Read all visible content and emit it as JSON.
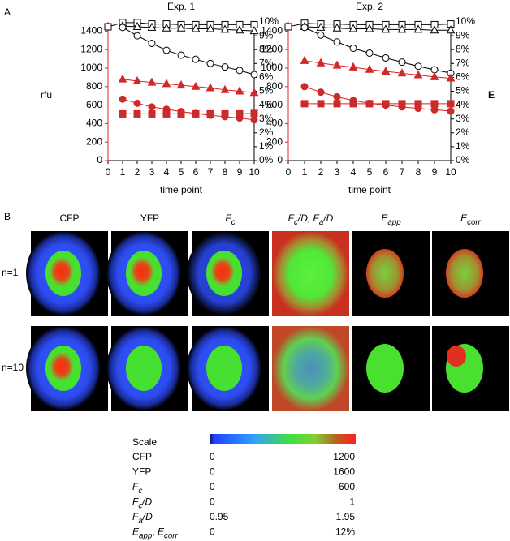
{
  "panel_labels": [
    "A",
    "B"
  ],
  "chart_data": [
    {
      "type": "line",
      "title": "Exp. 1",
      "xlabel": "time point",
      "ylabel": "rfu",
      "x": [
        0,
        1,
        2,
        3,
        4,
        5,
        6,
        7,
        8,
        9,
        10
      ],
      "xlim": [
        0,
        10
      ],
      "xticks": [
        0,
        1,
        2,
        3,
        4,
        5,
        6,
        7,
        8,
        9,
        10
      ],
      "ylim": [
        0,
        1500
      ],
      "yticks": [
        0,
        200,
        400,
        600,
        800,
        1000,
        1200,
        1400
      ],
      "y_color": "#e02828",
      "y2lim": [
        0,
        10
      ],
      "y2ticks": [
        {
          "value": 0,
          "label": "0%"
        },
        {
          "value": 1,
          "label": "1%"
        },
        {
          "value": 2,
          "label": "2%"
        },
        {
          "value": 3,
          "label": "3%"
        },
        {
          "value": 4,
          "label": "4%"
        },
        {
          "value": 5,
          "label": "5%"
        },
        {
          "value": 6,
          "label": "6%"
        },
        {
          "value": 7,
          "label": "7%"
        },
        {
          "value": 8,
          "label": "8%"
        },
        {
          "value": 9,
          "label": "9%"
        },
        {
          "value": 10,
          "label": "10%"
        }
      ],
      "series": [
        {
          "axis": "y2",
          "color": "#000000",
          "marker": "square",
          "marker_fill": "#ffffff",
          "values": [
            9.65,
            9.95,
            9.95,
            9.85,
            9.85,
            9.8,
            9.8,
            9.8,
            9.8,
            9.8,
            9.8
          ]
        },
        {
          "axis": "y2",
          "color": "#000000",
          "marker": "triangle",
          "marker_fill": "#ffffff",
          "values": [
            null,
            9.7,
            9.65,
            9.6,
            9.55,
            9.55,
            9.5,
            9.5,
            9.45,
            9.4,
            9.35
          ]
        },
        {
          "axis": "y2",
          "color": "#000000",
          "marker": "circle",
          "marker_fill": "#ffffff",
          "values": [
            null,
            9.6,
            9.0,
            8.45,
            7.95,
            7.6,
            7.3,
            7.0,
            6.75,
            6.5,
            6.2
          ]
        },
        {
          "axis": "y",
          "color": "#e02020",
          "marker": "triangle",
          "marker_fill": "#c03030",
          "values": [
            null,
            880,
            860,
            845,
            830,
            815,
            800,
            785,
            765,
            750,
            735
          ]
        },
        {
          "axis": "y",
          "color": "#e02020",
          "marker": "circle",
          "marker_fill": "#c03030",
          "values": [
            null,
            665,
            620,
            580,
            555,
            530,
            510,
            490,
            475,
            460,
            440
          ]
        },
        {
          "axis": "y",
          "color": "#e02020",
          "marker": "square",
          "marker_fill": "#c03030",
          "values": [
            null,
            505,
            505,
            505,
            505,
            505,
            505,
            505,
            505,
            505,
            510
          ]
        }
      ]
    },
    {
      "type": "line",
      "title": "Exp. 2",
      "xlabel": "time point",
      "y2label": "E",
      "x": [
        0,
        1,
        2,
        3,
        4,
        5,
        6,
        7,
        8,
        9,
        10
      ],
      "xlim": [
        0,
        10
      ],
      "xticks": [
        0,
        1,
        2,
        3,
        4,
        5,
        6,
        7,
        8,
        9,
        10
      ],
      "ylim": [
        0,
        1500
      ],
      "yticks": [
        0,
        200,
        400,
        600,
        800,
        1000,
        1200,
        1400
      ],
      "y_color": "#e02828",
      "y2lim": [
        0,
        10
      ],
      "y2ticks": [
        {
          "value": 0,
          "label": "0%"
        },
        {
          "value": 1,
          "label": "1%"
        },
        {
          "value": 2,
          "label": "2%"
        },
        {
          "value": 3,
          "label": "3%"
        },
        {
          "value": 4,
          "label": "4%"
        },
        {
          "value": 5,
          "label": "5%"
        },
        {
          "value": 6,
          "label": "6%"
        },
        {
          "value": 7,
          "label": "7%"
        },
        {
          "value": 8,
          "label": "8%"
        },
        {
          "value": 9,
          "label": "9%"
        },
        {
          "value": 10,
          "label": "10%"
        }
      ],
      "series": [
        {
          "axis": "y2",
          "color": "#000000",
          "marker": "square",
          "marker_fill": "#ffffff",
          "values": [
            9.65,
            9.9,
            9.85,
            9.85,
            9.8,
            9.8,
            9.8,
            9.8,
            9.8,
            9.8,
            9.85
          ]
        },
        {
          "axis": "y2",
          "color": "#000000",
          "marker": "triangle",
          "marker_fill": "#ffffff",
          "values": [
            null,
            9.65,
            9.6,
            9.55,
            9.5,
            9.5,
            9.45,
            9.45,
            9.45,
            9.4,
            9.4
          ]
        },
        {
          "axis": "y2",
          "color": "#000000",
          "marker": "circle",
          "marker_fill": "#ffffff",
          "values": [
            null,
            9.6,
            9.05,
            8.55,
            8.1,
            7.75,
            7.4,
            7.1,
            6.8,
            6.55,
            6.3
          ]
        },
        {
          "axis": "y",
          "color": "#e02020",
          "marker": "triangle",
          "marker_fill": "#c03030",
          "values": [
            null,
            1080,
            1055,
            1030,
            1010,
            985,
            965,
            945,
            925,
            905,
            890
          ]
        },
        {
          "axis": "y",
          "color": "#e02020",
          "marker": "circle",
          "marker_fill": "#c03030",
          "values": [
            null,
            800,
            740,
            690,
            650,
            620,
            600,
            580,
            565,
            550,
            535
          ]
        },
        {
          "axis": "y",
          "color": "#e02020",
          "marker": "square",
          "marker_fill": "#c03030",
          "values": [
            null,
            615,
            615,
            615,
            615,
            615,
            615,
            615,
            615,
            615,
            615
          ]
        }
      ]
    }
  ],
  "images": {
    "headers": [
      [
        {
          "text": "CFP",
          "style": "normal"
        }
      ],
      [
        {
          "text": "YFP",
          "style": "normal"
        }
      ],
      [
        {
          "text": "F",
          "style": "italic"
        },
        {
          "text": "c",
          "style": "sub"
        }
      ],
      [
        {
          "text": "F",
          "style": "italic"
        },
        {
          "text": "c",
          "style": "sub"
        },
        {
          "text": "/D, ",
          "style": "italic"
        },
        {
          "text": "F",
          "style": "italic"
        },
        {
          "text": "a",
          "style": "sub"
        },
        {
          "text": "/D",
          "style": "italic"
        }
      ],
      [
        {
          "text": "E",
          "style": "italic"
        },
        {
          "text": "app",
          "style": "sub"
        }
      ],
      [
        {
          "text": "E",
          "style": "italic"
        },
        {
          "text": "corr",
          "style": "sub"
        }
      ]
    ],
    "rows": [
      "n=1",
      "n=10"
    ]
  },
  "scale": {
    "title": "Scale",
    "rows": [
      {
        "label": [
          {
            "text": "CFP",
            "style": "normal"
          }
        ],
        "min": "0",
        "max": "1200"
      },
      {
        "label": [
          {
            "text": "YFP",
            "style": "normal"
          }
        ],
        "min": "0",
        "max": "1600"
      },
      {
        "label": [
          {
            "text": "F",
            "style": "italic"
          },
          {
            "text": "c",
            "style": "sub"
          }
        ],
        "min": "0",
        "max": "600"
      },
      {
        "label": [
          {
            "text": "F",
            "style": "italic"
          },
          {
            "text": "c",
            "style": "sub"
          },
          {
            "text": "/D",
            "style": "italic"
          }
        ],
        "min": "0",
        "max": "1"
      },
      {
        "label": [
          {
            "text": "F",
            "style": "italic"
          },
          {
            "text": "a",
            "style": "sub"
          },
          {
            "text": "/D",
            "style": "italic"
          }
        ],
        "min": "0.95",
        "max": "1.95"
      },
      {
        "label": [
          {
            "text": "E",
            "style": "italic"
          },
          {
            "text": "app",
            "style": "sub"
          },
          {
            "text": ", ",
            "style": "normal"
          },
          {
            "text": "E",
            "style": "italic"
          },
          {
            "text": "corr",
            "style": "sub"
          }
        ],
        "min": "0",
        "max": "12%"
      }
    ]
  }
}
